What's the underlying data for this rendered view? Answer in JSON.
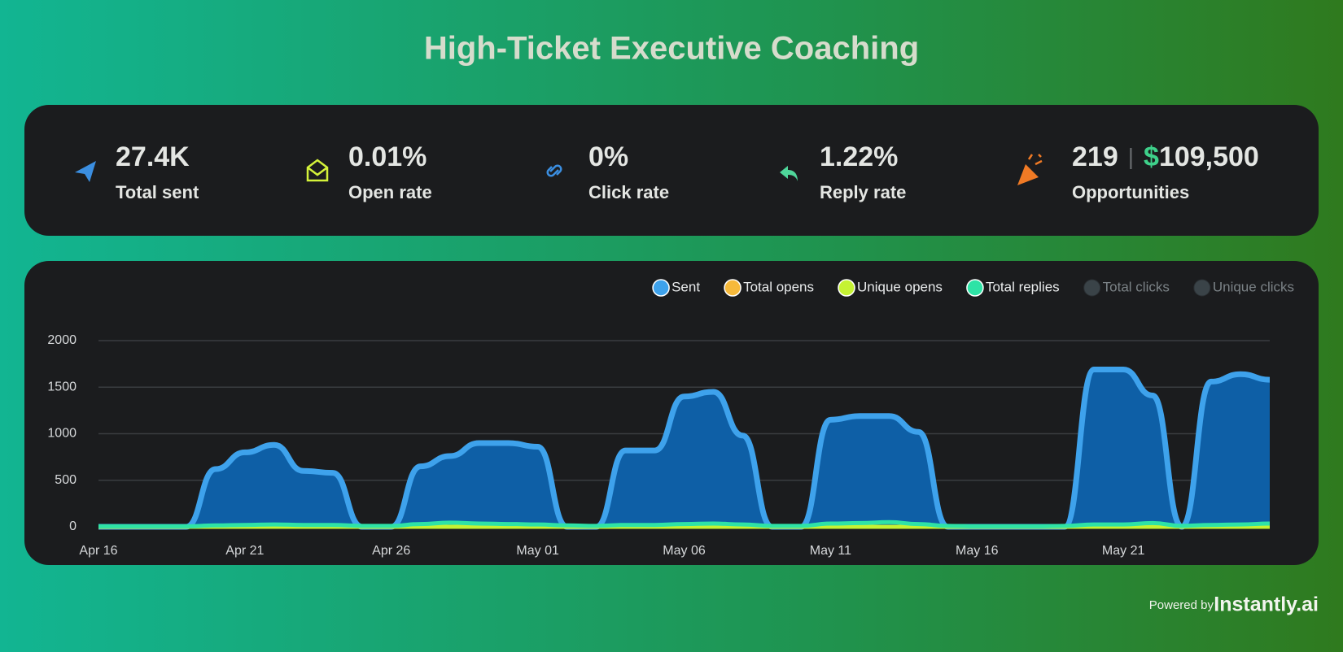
{
  "header": {
    "title": "High-Ticket Executive Coaching"
  },
  "stats": [
    {
      "value": "27.4K",
      "label": "Total sent"
    },
    {
      "value": "0.01%",
      "label": "Open rate"
    },
    {
      "value": "0%",
      "label": "Click rate"
    },
    {
      "value": "1.22%",
      "label": "Reply rate"
    },
    {
      "count": "219",
      "separator": "|",
      "currency": "$",
      "amount": "109,500",
      "label": "Opportunities"
    }
  ],
  "chart_data": {
    "type": "area",
    "categories": [
      "Apr 16",
      null,
      null,
      null,
      null,
      "Apr 21",
      null,
      null,
      null,
      null,
      "Apr 26",
      null,
      null,
      null,
      null,
      "May 01",
      null,
      null,
      null,
      null,
      "May 06",
      null,
      null,
      null,
      null,
      "May 11",
      null,
      null,
      null,
      null,
      "May 16",
      null,
      null,
      null,
      null,
      "May 21",
      null,
      null,
      null,
      null,
      null
    ],
    "series": [
      {
        "name": "Sent",
        "color": "#3ea2ec",
        "fill": "#0e5fa6",
        "values": [
          0,
          0,
          0,
          0,
          620,
          800,
          880,
          600,
          580,
          0,
          0,
          650,
          760,
          900,
          900,
          860,
          0,
          0,
          820,
          820,
          1400,
          1450,
          980,
          0,
          0,
          1150,
          1190,
          1190,
          1020,
          0,
          0,
          0,
          0,
          0,
          1690,
          1690,
          1410,
          0,
          1560,
          1640,
          1580
        ]
      },
      {
        "name": "Total opens",
        "color": "#f6b93b",
        "values": [
          0,
          0,
          0,
          0,
          0,
          0,
          0,
          0,
          0,
          0,
          0,
          0,
          0,
          0,
          0,
          0,
          0,
          0,
          0,
          0,
          0,
          0,
          0,
          0,
          0,
          0,
          0,
          0,
          0,
          0,
          0,
          0,
          0,
          0,
          0,
          0,
          0,
          0,
          0,
          0,
          0
        ]
      },
      {
        "name": "Unique opens",
        "color": "#c5f233",
        "values": [
          0,
          0,
          0,
          0,
          0,
          0,
          0,
          0,
          0,
          0,
          0,
          0,
          0,
          0,
          0,
          0,
          0,
          0,
          0,
          0,
          0,
          0,
          0,
          0,
          0,
          0,
          0,
          0,
          0,
          0,
          0,
          0,
          0,
          0,
          0,
          0,
          0,
          0,
          0,
          0,
          0
        ]
      },
      {
        "name": "Total replies",
        "color": "#2ee3a6",
        "values": [
          5,
          5,
          5,
          5,
          15,
          20,
          25,
          20,
          20,
          10,
          10,
          30,
          45,
          35,
          30,
          25,
          15,
          10,
          20,
          20,
          30,
          35,
          25,
          10,
          10,
          35,
          40,
          50,
          30,
          10,
          5,
          5,
          5,
          10,
          25,
          25,
          40,
          10,
          20,
          25,
          35
        ]
      },
      {
        "name": "Total clicks",
        "color": "#3a4348",
        "hidden": true,
        "values": [
          0,
          0,
          0,
          0,
          0,
          0,
          0,
          0,
          0,
          0,
          0,
          0,
          0,
          0,
          0,
          0,
          0,
          0,
          0,
          0,
          0,
          0,
          0,
          0,
          0,
          0,
          0,
          0,
          0,
          0,
          0,
          0,
          0,
          0,
          0,
          0,
          0,
          0,
          0,
          0,
          0
        ]
      },
      {
        "name": "Unique clicks",
        "color": "#3a4348",
        "hidden": true,
        "values": [
          0,
          0,
          0,
          0,
          0,
          0,
          0,
          0,
          0,
          0,
          0,
          0,
          0,
          0,
          0,
          0,
          0,
          0,
          0,
          0,
          0,
          0,
          0,
          0,
          0,
          0,
          0,
          0,
          0,
          0,
          0,
          0,
          0,
          0,
          0,
          0,
          0,
          0,
          0,
          0,
          0
        ]
      }
    ],
    "ylim": [
      0,
      2000
    ],
    "yticks": [
      0,
      500,
      1000,
      1500,
      2000
    ],
    "grid": true,
    "legend": "top-right"
  },
  "footer": {
    "prefix": "Powered by",
    "brand": "Instantly.ai"
  }
}
